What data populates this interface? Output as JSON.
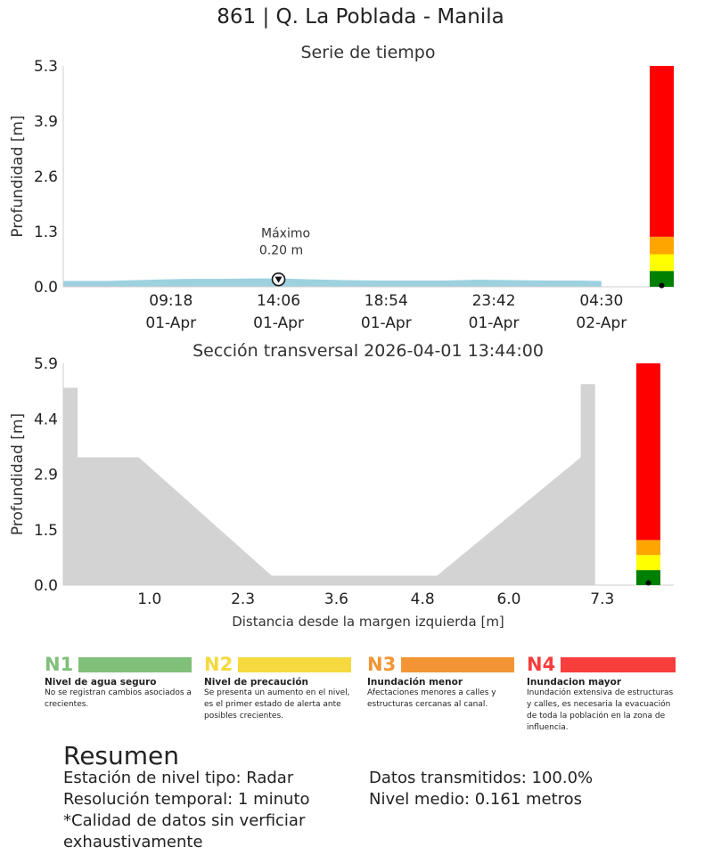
{
  "page_title": "861 | Q. La Poblada - Manila",
  "chart_data": [
    {
      "type": "area",
      "title": "Serie de tiempo",
      "ylabel": "Profundidad [m]",
      "xlabel": "",
      "yticks": [
        "0.0",
        "1.3",
        "2.6",
        "3.9",
        "5.3"
      ],
      "ylim": [
        0,
        5.3
      ],
      "xlim": [
        0,
        25
      ],
      "xticks": [
        {
          "pos": 4.8,
          "time": "09:18",
          "date": "01-Apr"
        },
        {
          "pos": 9.6,
          "time": "14:06",
          "date": "01-Apr"
        },
        {
          "pos": 14.4,
          "time": "18:54",
          "date": "01-Apr"
        },
        {
          "pos": 19.2,
          "time": "23:42",
          "date": "01-Apr"
        },
        {
          "pos": 24.0,
          "time": "04:30",
          "date": "02-Apr"
        }
      ],
      "series": [
        {
          "x": [
            0,
            2,
            4,
            5.5,
            7,
            8.5,
            9.6,
            11,
            12.5,
            14,
            15.5,
            17,
            18.5,
            20,
            21.5,
            23,
            24
          ],
          "y": [
            0.14,
            0.14,
            0.17,
            0.19,
            0.19,
            0.2,
            0.2,
            0.18,
            0.16,
            0.15,
            0.15,
            0.15,
            0.17,
            0.16,
            0.15,
            0.15,
            0.14
          ],
          "color": "#9dd1e0"
        }
      ],
      "max_marker": {
        "x": 9.6,
        "y": 0.2,
        "label_line1": "Máximo",
        "label_line2": "0.20 m"
      },
      "level_bar": [
        {
          "from": 0,
          "to": 0.38,
          "color": "#008000"
        },
        {
          "from": 0.38,
          "to": 0.78,
          "color": "#ffff00"
        },
        {
          "from": 0.78,
          "to": 1.2,
          "color": "#ffa500"
        },
        {
          "from": 1.2,
          "to": 5.3,
          "color": "#ff0000"
        }
      ],
      "current_level": 0.2,
      "grid": false
    },
    {
      "type": "area",
      "title": "Sección transversal 2026-04-01 13:44:00",
      "ylabel": "Profundidad [m]",
      "xlabel": "Distancia desde la margen izquierda [m]",
      "yticks": [
        "0.0",
        "1.5",
        "2.9",
        "4.4",
        "5.9"
      ],
      "ylim": [
        0,
        5.9
      ],
      "xticks": [
        "1.0",
        "2.3",
        "3.6",
        "4.8",
        "6.0",
        "7.3"
      ],
      "xtick_values": [
        1.0,
        2.3,
        3.6,
        4.8,
        6.0,
        7.3
      ],
      "xlim": [
        -0.2,
        7.6
      ],
      "terrain": {
        "x": [
          -0.2,
          0.0,
          0.0,
          0.85,
          2.7,
          5.0,
          7.0,
          7.0,
          7.2,
          7.2
        ],
        "y": [
          5.25,
          5.25,
          3.4,
          3.4,
          0.25,
          0.25,
          3.4,
          5.35,
          5.35,
          0
        ]
      },
      "water": {
        "x_start": 2.7,
        "x_end": 5.0,
        "level": 0.25,
        "color": "#9dd1e0"
      },
      "level_bar": [
        {
          "from": 0,
          "to": 0.4,
          "color": "#008000"
        },
        {
          "from": 0.4,
          "to": 0.8,
          "color": "#ffff00"
        },
        {
          "from": 0.8,
          "to": 1.2,
          "color": "#ffa500"
        },
        {
          "from": 1.2,
          "to": 5.9,
          "color": "#ff0000"
        }
      ],
      "current_level": 0.2,
      "grid": false
    }
  ],
  "legend": [
    {
      "code": "N1",
      "title": "Nivel de agua seguro",
      "desc": "No se registran cambios asociados a crecientes.",
      "color": "#80c07a",
      "code_color": "#80c07a"
    },
    {
      "code": "N2",
      "title": "Nivel de precaución",
      "desc": "Se presenta un aumento en el nivel, es el primer estado de alerta ante posibles crecientes.",
      "color": "#f5d93e",
      "code_color": "#f5d93e"
    },
    {
      "code": "N3",
      "title": "Inundación menor",
      "desc": "Afectaciones menores a calles y estructuras cercanas al canal.",
      "color": "#f39534",
      "code_color": "#f39534"
    },
    {
      "code": "N4",
      "title": "Inundacion mayor",
      "desc": "Inundación extensiva de estructuras y calles, es necesaria la evacuación de toda la población en la zona de influencia.",
      "color": "#f83d3d",
      "code_color": "#f83d3d"
    }
  ],
  "summary": {
    "title": "Resumen",
    "left": [
      "Estación de nivel tipo: Radar",
      "Resolución temporal: 1 minuto",
      "*Calidad de datos sin verficiar",
      "exhaustivamente"
    ],
    "right": [
      "Datos transmitidos: 100.0%",
      "Nivel medio: 0.161 metros"
    ]
  }
}
